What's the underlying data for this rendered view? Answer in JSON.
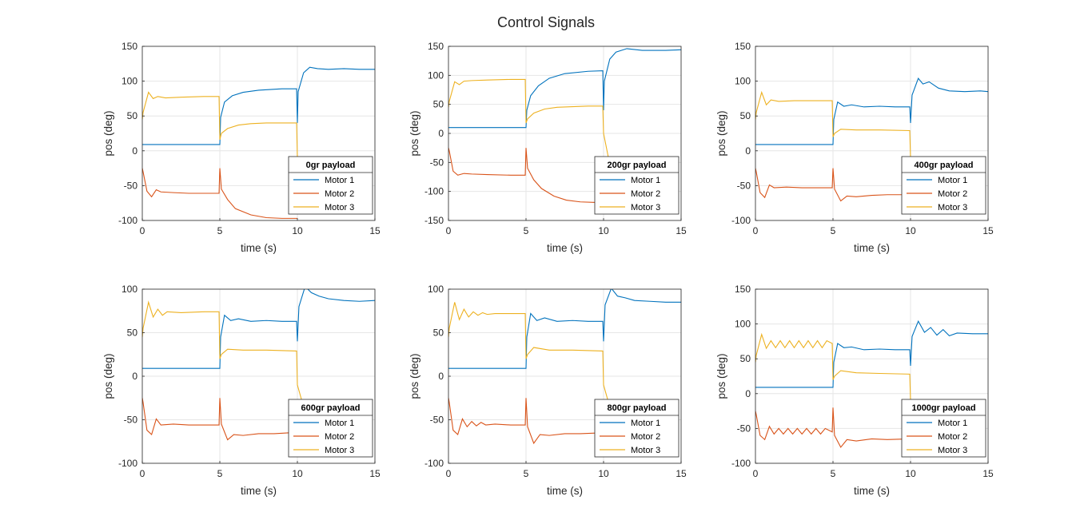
{
  "figure_title": "Control Signals",
  "colors": {
    "motor1": "#0072BD",
    "motor2": "#D95319",
    "motor3": "#EDB120",
    "grid": "#E6E6E6",
    "axis": "#262626"
  },
  "chart_data": [
    {
      "type": "line",
      "legend_title": "0gr payload",
      "xlabel": "time (s)",
      "ylabel": "pos (deg)",
      "xlim": [
        0,
        15
      ],
      "ylim": [
        -100,
        150
      ],
      "xticks": [
        0,
        5,
        10,
        15
      ],
      "yticks": [
        -100,
        -50,
        0,
        50,
        100,
        150
      ],
      "grid": true,
      "legend_location": "bottom-right",
      "series": [
        {
          "name": "Motor 1",
          "x": [
            0,
            5,
            5.05,
            5.3,
            5.8,
            6.5,
            7.5,
            9,
            9.95,
            10,
            10.05,
            10.4,
            10.8,
            11.3,
            12,
            13,
            14,
            15
          ],
          "y": [
            9,
            9,
            48,
            70,
            79,
            84,
            87,
            89,
            89,
            40,
            85,
            112,
            120,
            118,
            117,
            118,
            117,
            117
          ]
        },
        {
          "name": "Motor 2",
          "x": [
            0,
            0.05,
            0.3,
            0.6,
            0.9,
            1.2,
            2,
            3,
            4,
            4.95,
            5,
            5.1,
            5.5,
            6,
            7,
            8,
            9,
            9.95,
            10
          ],
          "y": [
            -25,
            -30,
            -58,
            -66,
            -56,
            -59,
            -60,
            -61,
            -61,
            -61,
            -25,
            -55,
            -70,
            -83,
            -92,
            -96,
            -97,
            -97,
            -97
          ]
        },
        {
          "name": "Motor 3",
          "x": [
            0,
            0.05,
            0.4,
            0.7,
            1.0,
            1.5,
            2.5,
            4,
            4.95,
            5,
            5.1,
            5.5,
            6.2,
            7,
            8,
            9,
            9.95,
            10,
            10.2
          ],
          "y": [
            45,
            55,
            84,
            75,
            78,
            76,
            77,
            78,
            78,
            16,
            25,
            32,
            37,
            39,
            40,
            40,
            40,
            -10,
            -43
          ]
        }
      ]
    },
    {
      "type": "line",
      "legend_title": "200gr payload",
      "xlabel": "time (s)",
      "ylabel": "pos (deg)",
      "xlim": [
        0,
        15
      ],
      "ylim": [
        -150,
        150
      ],
      "xticks": [
        0,
        5,
        10,
        15
      ],
      "yticks": [
        -150,
        -100,
        -50,
        0,
        50,
        100,
        150
      ],
      "grid": true,
      "legend_location": "bottom-right",
      "series": [
        {
          "name": "Motor 1",
          "x": [
            0,
            5,
            5.05,
            5.3,
            5.8,
            6.5,
            7.5,
            9,
            9.95,
            10,
            10.05,
            10.4,
            10.8,
            11.5,
            12.5,
            14,
            15
          ],
          "y": [
            10,
            10,
            40,
            65,
            82,
            95,
            103,
            107,
            108,
            40,
            90,
            128,
            140,
            146,
            143,
            143,
            144
          ]
        },
        {
          "name": "Motor 2",
          "x": [
            0,
            0.05,
            0.3,
            0.6,
            1.0,
            1.5,
            2.5,
            4,
            4.95,
            5,
            5.1,
            5.5,
            6,
            6.8,
            7.6,
            8.5,
            9.5,
            9.95,
            10
          ],
          "y": [
            -25,
            -30,
            -65,
            -72,
            -69,
            -70,
            -71,
            -72,
            -72,
            -25,
            -60,
            -80,
            -95,
            -108,
            -115,
            -118,
            -119,
            -119,
            -119
          ]
        },
        {
          "name": "Motor 3",
          "x": [
            0,
            0.05,
            0.4,
            0.7,
            1.0,
            1.5,
            2.5,
            4,
            4.95,
            5,
            5.1,
            5.5,
            6.2,
            7,
            8,
            9,
            9.95,
            10,
            10.3,
            10.6
          ],
          "y": [
            45,
            55,
            89,
            84,
            90,
            91,
            92,
            93,
            93,
            18,
            25,
            35,
            42,
            45,
            46,
            47,
            47,
            0,
            -40,
            -54
          ]
        }
      ]
    },
    {
      "type": "line",
      "legend_title": "400gr payload",
      "xlabel": "time (s)",
      "ylabel": "pos (deg)",
      "xlim": [
        0,
        15
      ],
      "ylim": [
        -100,
        150
      ],
      "xticks": [
        0,
        5,
        10,
        15
      ],
      "yticks": [
        -100,
        -50,
        0,
        50,
        100,
        150
      ],
      "grid": true,
      "legend_location": "bottom-right",
      "series": [
        {
          "name": "Motor 1",
          "x": [
            0,
            5,
            5.05,
            5.3,
            5.7,
            6.2,
            7,
            8,
            9,
            9.95,
            10,
            10.1,
            10.5,
            10.8,
            11.2,
            11.8,
            12.5,
            13.5,
            14.5,
            15
          ],
          "y": [
            9,
            9,
            45,
            70,
            64,
            66,
            63,
            64,
            63,
            63,
            40,
            80,
            104,
            96,
            99,
            90,
            86,
            85,
            86,
            85
          ]
        },
        {
          "name": "Motor 2",
          "x": [
            0,
            0.05,
            0.3,
            0.6,
            0.9,
            1.2,
            2,
            3,
            4,
            4.95,
            5,
            5.1,
            5.5,
            5.9,
            6.5,
            7.5,
            8.5,
            9.5,
            9.95
          ],
          "y": [
            -25,
            -30,
            -60,
            -67,
            -49,
            -53,
            -52,
            -53,
            -53,
            -53,
            -25,
            -55,
            -72,
            -65,
            -66,
            -64,
            -63,
            -63,
            -63
          ]
        },
        {
          "name": "Motor 3",
          "x": [
            0,
            0.05,
            0.4,
            0.7,
            1.0,
            1.5,
            2.5,
            4,
            4.95,
            5,
            5.1,
            5.5,
            6.5,
            8,
            9.95,
            10,
            10.3
          ],
          "y": [
            45,
            55,
            84,
            66,
            73,
            71,
            72,
            72,
            72,
            20,
            25,
            31,
            30,
            30,
            29,
            -10,
            -29
          ]
        }
      ]
    },
    {
      "type": "line",
      "legend_title": "600gr payload",
      "xlabel": "time (s)",
      "ylabel": "pos (deg)",
      "xlim": [
        0,
        15
      ],
      "ylim": [
        -100,
        100
      ],
      "xticks": [
        0,
        5,
        10,
        15
      ],
      "yticks": [
        -100,
        -50,
        0,
        50,
        100
      ],
      "grid": true,
      "legend_location": "bottom-right",
      "series": [
        {
          "name": "Motor 1",
          "x": [
            0,
            5,
            5.05,
            5.3,
            5.7,
            6.2,
            7,
            8,
            9,
            9.95,
            10,
            10.1,
            10.5,
            10.9,
            11.4,
            12,
            13,
            14,
            15
          ],
          "y": [
            9,
            9,
            45,
            70,
            64,
            66,
            63,
            64,
            63,
            63,
            40,
            80,
            103,
            96,
            92,
            89,
            87,
            86,
            87
          ]
        },
        {
          "name": "Motor 2",
          "x": [
            0,
            0.05,
            0.3,
            0.6,
            0.9,
            1.2,
            2,
            3,
            4,
            4.95,
            5,
            5.1,
            5.5,
            5.9,
            6.5,
            7.5,
            8.5,
            9.5,
            9.95
          ],
          "y": [
            -25,
            -30,
            -62,
            -67,
            -49,
            -56,
            -55,
            -56,
            -56,
            -56,
            -25,
            -55,
            -73,
            -67,
            -68,
            -66,
            -66,
            -65,
            -65
          ]
        },
        {
          "name": "Motor 3",
          "x": [
            0,
            0.05,
            0.4,
            0.7,
            1.0,
            1.3,
            1.6,
            2.5,
            4,
            4.95,
            5,
            5.1,
            5.5,
            6.5,
            8,
            9.95,
            10,
            10.3
          ],
          "y": [
            45,
            55,
            85,
            68,
            77,
            70,
            74,
            73,
            74,
            74,
            20,
            25,
            31,
            30,
            30,
            29,
            -10,
            -29
          ]
        }
      ]
    },
    {
      "type": "line",
      "legend_title": "800gr payload",
      "xlabel": "time (s)",
      "ylabel": "pos (deg)",
      "xlim": [
        0,
        15
      ],
      "ylim": [
        -100,
        100
      ],
      "xticks": [
        0,
        5,
        10,
        15
      ],
      "yticks": [
        -100,
        -50,
        0,
        50,
        100
      ],
      "grid": true,
      "legend_location": "bottom-right",
      "series": [
        {
          "name": "Motor 1",
          "x": [
            0,
            5,
            5.05,
            5.3,
            5.7,
            6.2,
            7,
            8,
            9,
            9.95,
            10,
            10.1,
            10.5,
            10.9,
            11.4,
            12,
            13,
            14,
            15
          ],
          "y": [
            9,
            9,
            45,
            72,
            64,
            67,
            63,
            64,
            63,
            63,
            40,
            82,
            101,
            92,
            90,
            87,
            86,
            85,
            85
          ]
        },
        {
          "name": "Motor 2",
          "x": [
            0,
            0.05,
            0.3,
            0.6,
            0.9,
            1.2,
            1.5,
            1.8,
            2.1,
            2.4,
            3,
            4,
            4.95,
            5,
            5.1,
            5.5,
            5.9,
            6.5,
            7.5,
            8.5,
            9.95
          ],
          "y": [
            -25,
            -30,
            -62,
            -67,
            -49,
            -58,
            -52,
            -57,
            -53,
            -56,
            -55,
            -56,
            -56,
            -25,
            -58,
            -77,
            -67,
            -68,
            -66,
            -66,
            -65
          ]
        },
        {
          "name": "Motor 3",
          "x": [
            0,
            0.05,
            0.4,
            0.7,
            1.0,
            1.3,
            1.6,
            1.9,
            2.2,
            2.5,
            3,
            4,
            4.95,
            5,
            5.1,
            5.5,
            6.5,
            8,
            9.95,
            10,
            10.3
          ],
          "y": [
            45,
            55,
            85,
            65,
            77,
            68,
            74,
            70,
            73,
            71,
            72,
            72,
            72,
            20,
            25,
            33,
            30,
            30,
            29,
            -10,
            -29
          ]
        }
      ]
    },
    {
      "type": "line",
      "legend_title": "1000gr payload",
      "xlabel": "time (s)",
      "ylabel": "pos (deg)",
      "xlim": [
        0,
        15
      ],
      "ylim": [
        -100,
        150
      ],
      "xticks": [
        0,
        5,
        10,
        15
      ],
      "yticks": [
        -100,
        -50,
        0,
        50,
        100,
        150
      ],
      "grid": true,
      "legend_location": "bottom-right",
      "series": [
        {
          "name": "Motor 1",
          "x": [
            0,
            5,
            5.05,
            5.3,
            5.7,
            6.2,
            7,
            8,
            9,
            9.95,
            10,
            10.1,
            10.5,
            10.9,
            11.3,
            11.7,
            12.1,
            12.5,
            13,
            14,
            15
          ],
          "y": [
            9,
            9,
            45,
            72,
            66,
            67,
            63,
            64,
            63,
            63,
            40,
            82,
            104,
            88,
            95,
            84,
            92,
            83,
            87,
            86,
            86
          ]
        },
        {
          "name": "Motor 2",
          "x": [
            0,
            0.05,
            0.3,
            0.6,
            0.9,
            1.2,
            1.5,
            1.8,
            2.1,
            2.4,
            2.7,
            3.0,
            3.3,
            3.6,
            3.9,
            4.2,
            4.5,
            4.95,
            5,
            5.1,
            5.5,
            5.9,
            6.5,
            7.5,
            8.5,
            9.95
          ],
          "y": [
            -25,
            -30,
            -60,
            -66,
            -47,
            -58,
            -50,
            -58,
            -50,
            -58,
            -50,
            -58,
            -50,
            -58,
            -50,
            -58,
            -50,
            -55,
            -20,
            -60,
            -77,
            -66,
            -68,
            -65,
            -66,
            -65
          ]
        },
        {
          "name": "Motor 3",
          "x": [
            0,
            0.05,
            0.4,
            0.7,
            1.0,
            1.3,
            1.6,
            1.9,
            2.2,
            2.5,
            2.8,
            3.1,
            3.4,
            3.7,
            4.0,
            4.3,
            4.6,
            4.95,
            5,
            5.1,
            5.5,
            6.5,
            8,
            9.95,
            10,
            10.3
          ],
          "y": [
            45,
            55,
            85,
            65,
            76,
            66,
            76,
            66,
            76,
            66,
            76,
            66,
            76,
            66,
            76,
            66,
            76,
            72,
            20,
            25,
            33,
            30,
            29,
            28,
            -10,
            -29
          ]
        }
      ]
    }
  ]
}
